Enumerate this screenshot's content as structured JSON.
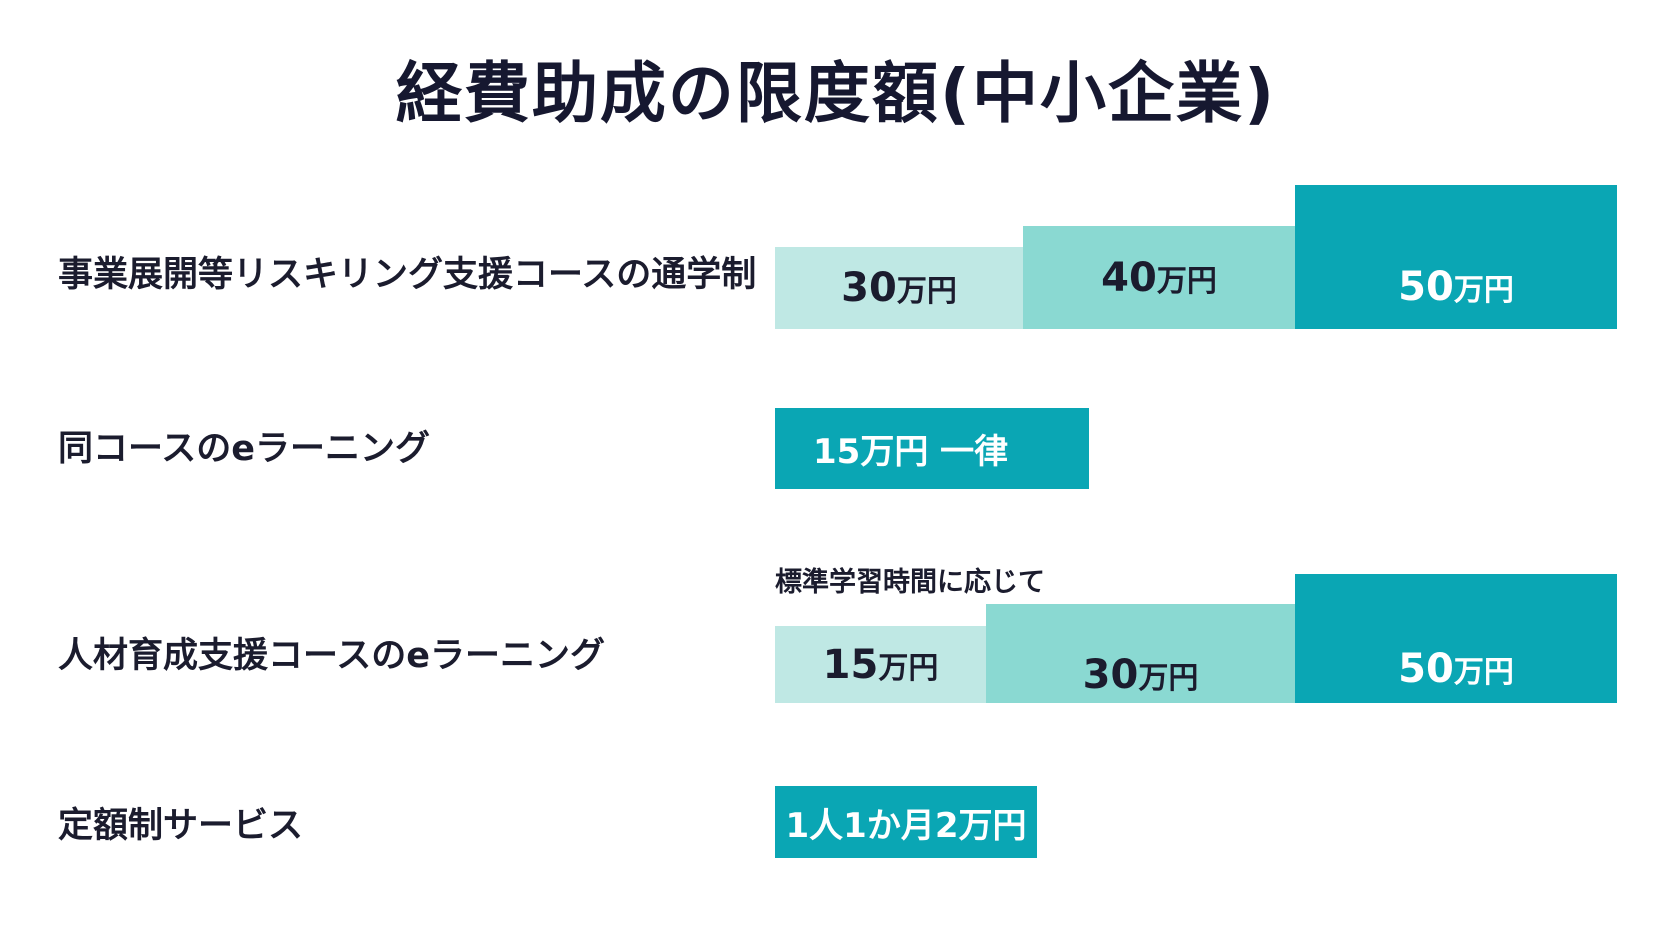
{
  "title": "経費助成の限度額(中小企業)",
  "rows": {
    "row1": {
      "label": "事業展開等リスキリング支援コースの通学制",
      "tiers": [
        {
          "num": "30",
          "unit": "万円"
        },
        {
          "num": "40",
          "unit": "万円"
        },
        {
          "num": "50",
          "unit": "万円"
        }
      ]
    },
    "row2": {
      "label": "同コースのeラーニング",
      "value": "15万円 一律"
    },
    "row3": {
      "label": "人材育成支援コースのeラーニング",
      "note": "標準学習時間に応じて",
      "tiers": [
        {
          "num": "15",
          "unit": "万円"
        },
        {
          "num": "30",
          "unit": "万円"
        },
        {
          "num": "50",
          "unit": "万円"
        }
      ]
    },
    "row4": {
      "label": "定額制サービス",
      "value": "1人1か月2万円"
    }
  },
  "colors": {
    "tier_light": "#bfe8e4",
    "tier_mid": "#8ad9d2",
    "tier_dark": "#0aa6b4",
    "title_text": "#161830"
  }
}
